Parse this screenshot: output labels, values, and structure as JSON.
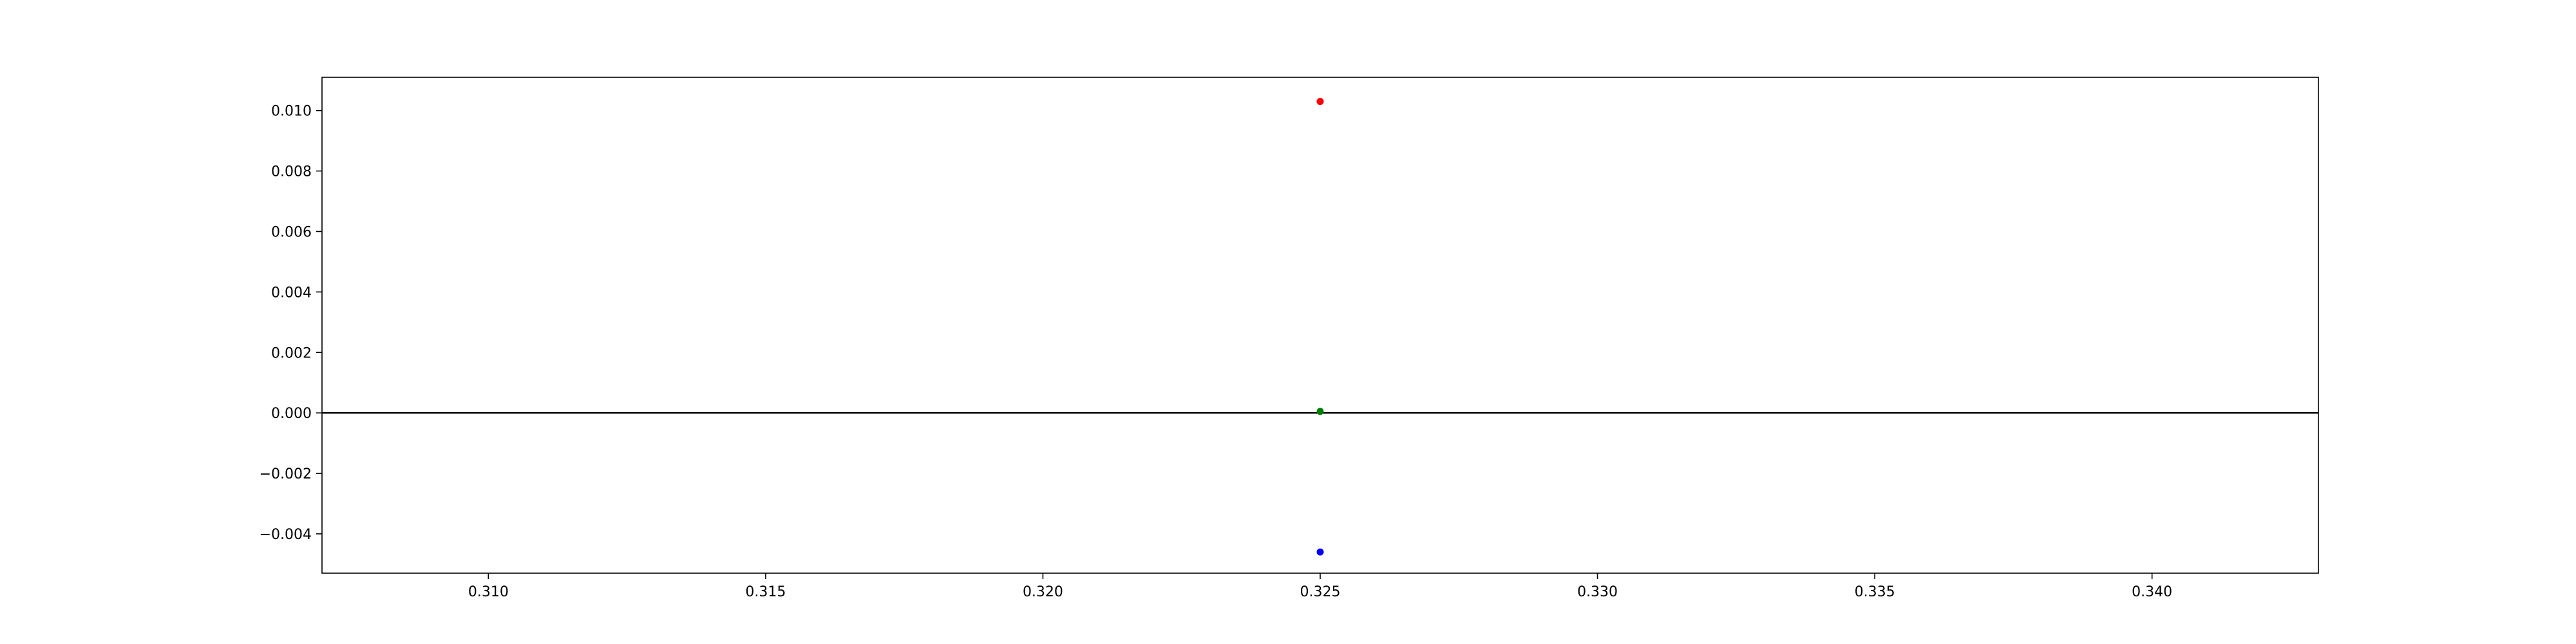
{
  "chart_data": {
    "type": "scatter",
    "title": "",
    "xlabel": "",
    "ylabel": "",
    "xlim": [
      0.307,
      0.343
    ],
    "ylim": [
      -0.0053,
      0.0111
    ],
    "grid": false,
    "legend": "none",
    "x_ticks": [
      0.31,
      0.315,
      0.32,
      0.325,
      0.33,
      0.335,
      0.34
    ],
    "x_tick_labels": [
      "0.310",
      "0.315",
      "0.320",
      "0.325",
      "0.330",
      "0.335",
      "0.340"
    ],
    "y_ticks": [
      -0.004,
      -0.002,
      0.0,
      0.002,
      0.004,
      0.006,
      0.008,
      0.01
    ],
    "y_tick_labels": [
      "−0.004",
      "−0.002",
      "0.000",
      "0.002",
      "0.004",
      "0.006",
      "0.008",
      "0.010"
    ],
    "reference_line_y": 0,
    "points": [
      {
        "x": 0.325,
        "y": 0.0103,
        "color": "#ff0000"
      },
      {
        "x": 0.325,
        "y": 5e-05,
        "color": "#008000"
      },
      {
        "x": 0.325,
        "y": -0.0046,
        "color": "#0000ff"
      }
    ]
  }
}
